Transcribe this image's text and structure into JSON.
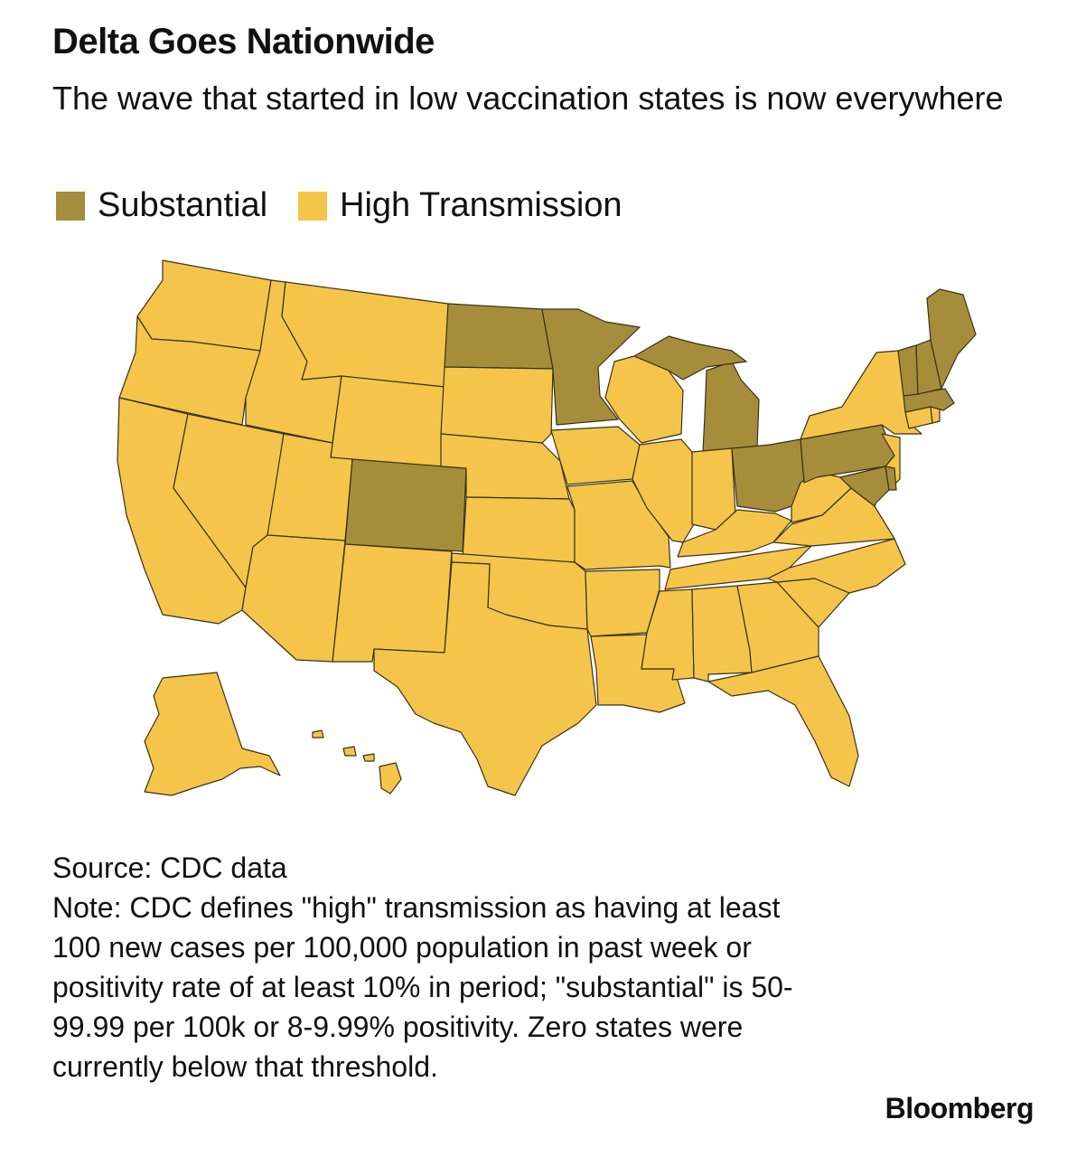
{
  "header": {
    "title": "Delta Goes Nationwide",
    "subtitle": "The wave that started in low vaccination states is now everywhere"
  },
  "legend": [
    {
      "label": "Substantial",
      "color": "#a68d3c"
    },
    {
      "label": "High Transmission",
      "color": "#f4c54a"
    }
  ],
  "map": {
    "stroke_color": "#3a3115",
    "substantial_states": [
      "North Dakota",
      "Minnesota",
      "Colorado",
      "Michigan",
      "Ohio",
      "Pennsylvania",
      "Maryland",
      "Delaware",
      "Vermont",
      "New Hampshire",
      "Maine",
      "Massachusetts"
    ],
    "high_transmission_states": [
      "Washington",
      "Oregon",
      "California",
      "Idaho",
      "Nevada",
      "Montana",
      "Wyoming",
      "Utah",
      "Arizona",
      "New Mexico",
      "South Dakota",
      "Nebraska",
      "Kansas",
      "Oklahoma",
      "Texas",
      "Iowa",
      "Missouri",
      "Arkansas",
      "Louisiana",
      "Wisconsin",
      "Illinois",
      "Indiana",
      "Kentucky",
      "Tennessee",
      "Mississippi",
      "Alabama",
      "Georgia",
      "Florida",
      "South Carolina",
      "North Carolina",
      "Virginia",
      "West Virginia",
      "New York",
      "New Jersey",
      "Connecticut",
      "Rhode Island",
      "Alaska",
      "Hawaii"
    ]
  },
  "footer": {
    "source": "Source: CDC data",
    "note": "Note: CDC defines \"high\" transmission as having at least 100 new cases per 100,000 population in past week or positivity rate of at least 10% in period; \"substantial\" is 50-99.99 per 100k or 8-9.99% positivity. Zero states were currently below that threshold."
  },
  "brand": "Bloomberg"
}
